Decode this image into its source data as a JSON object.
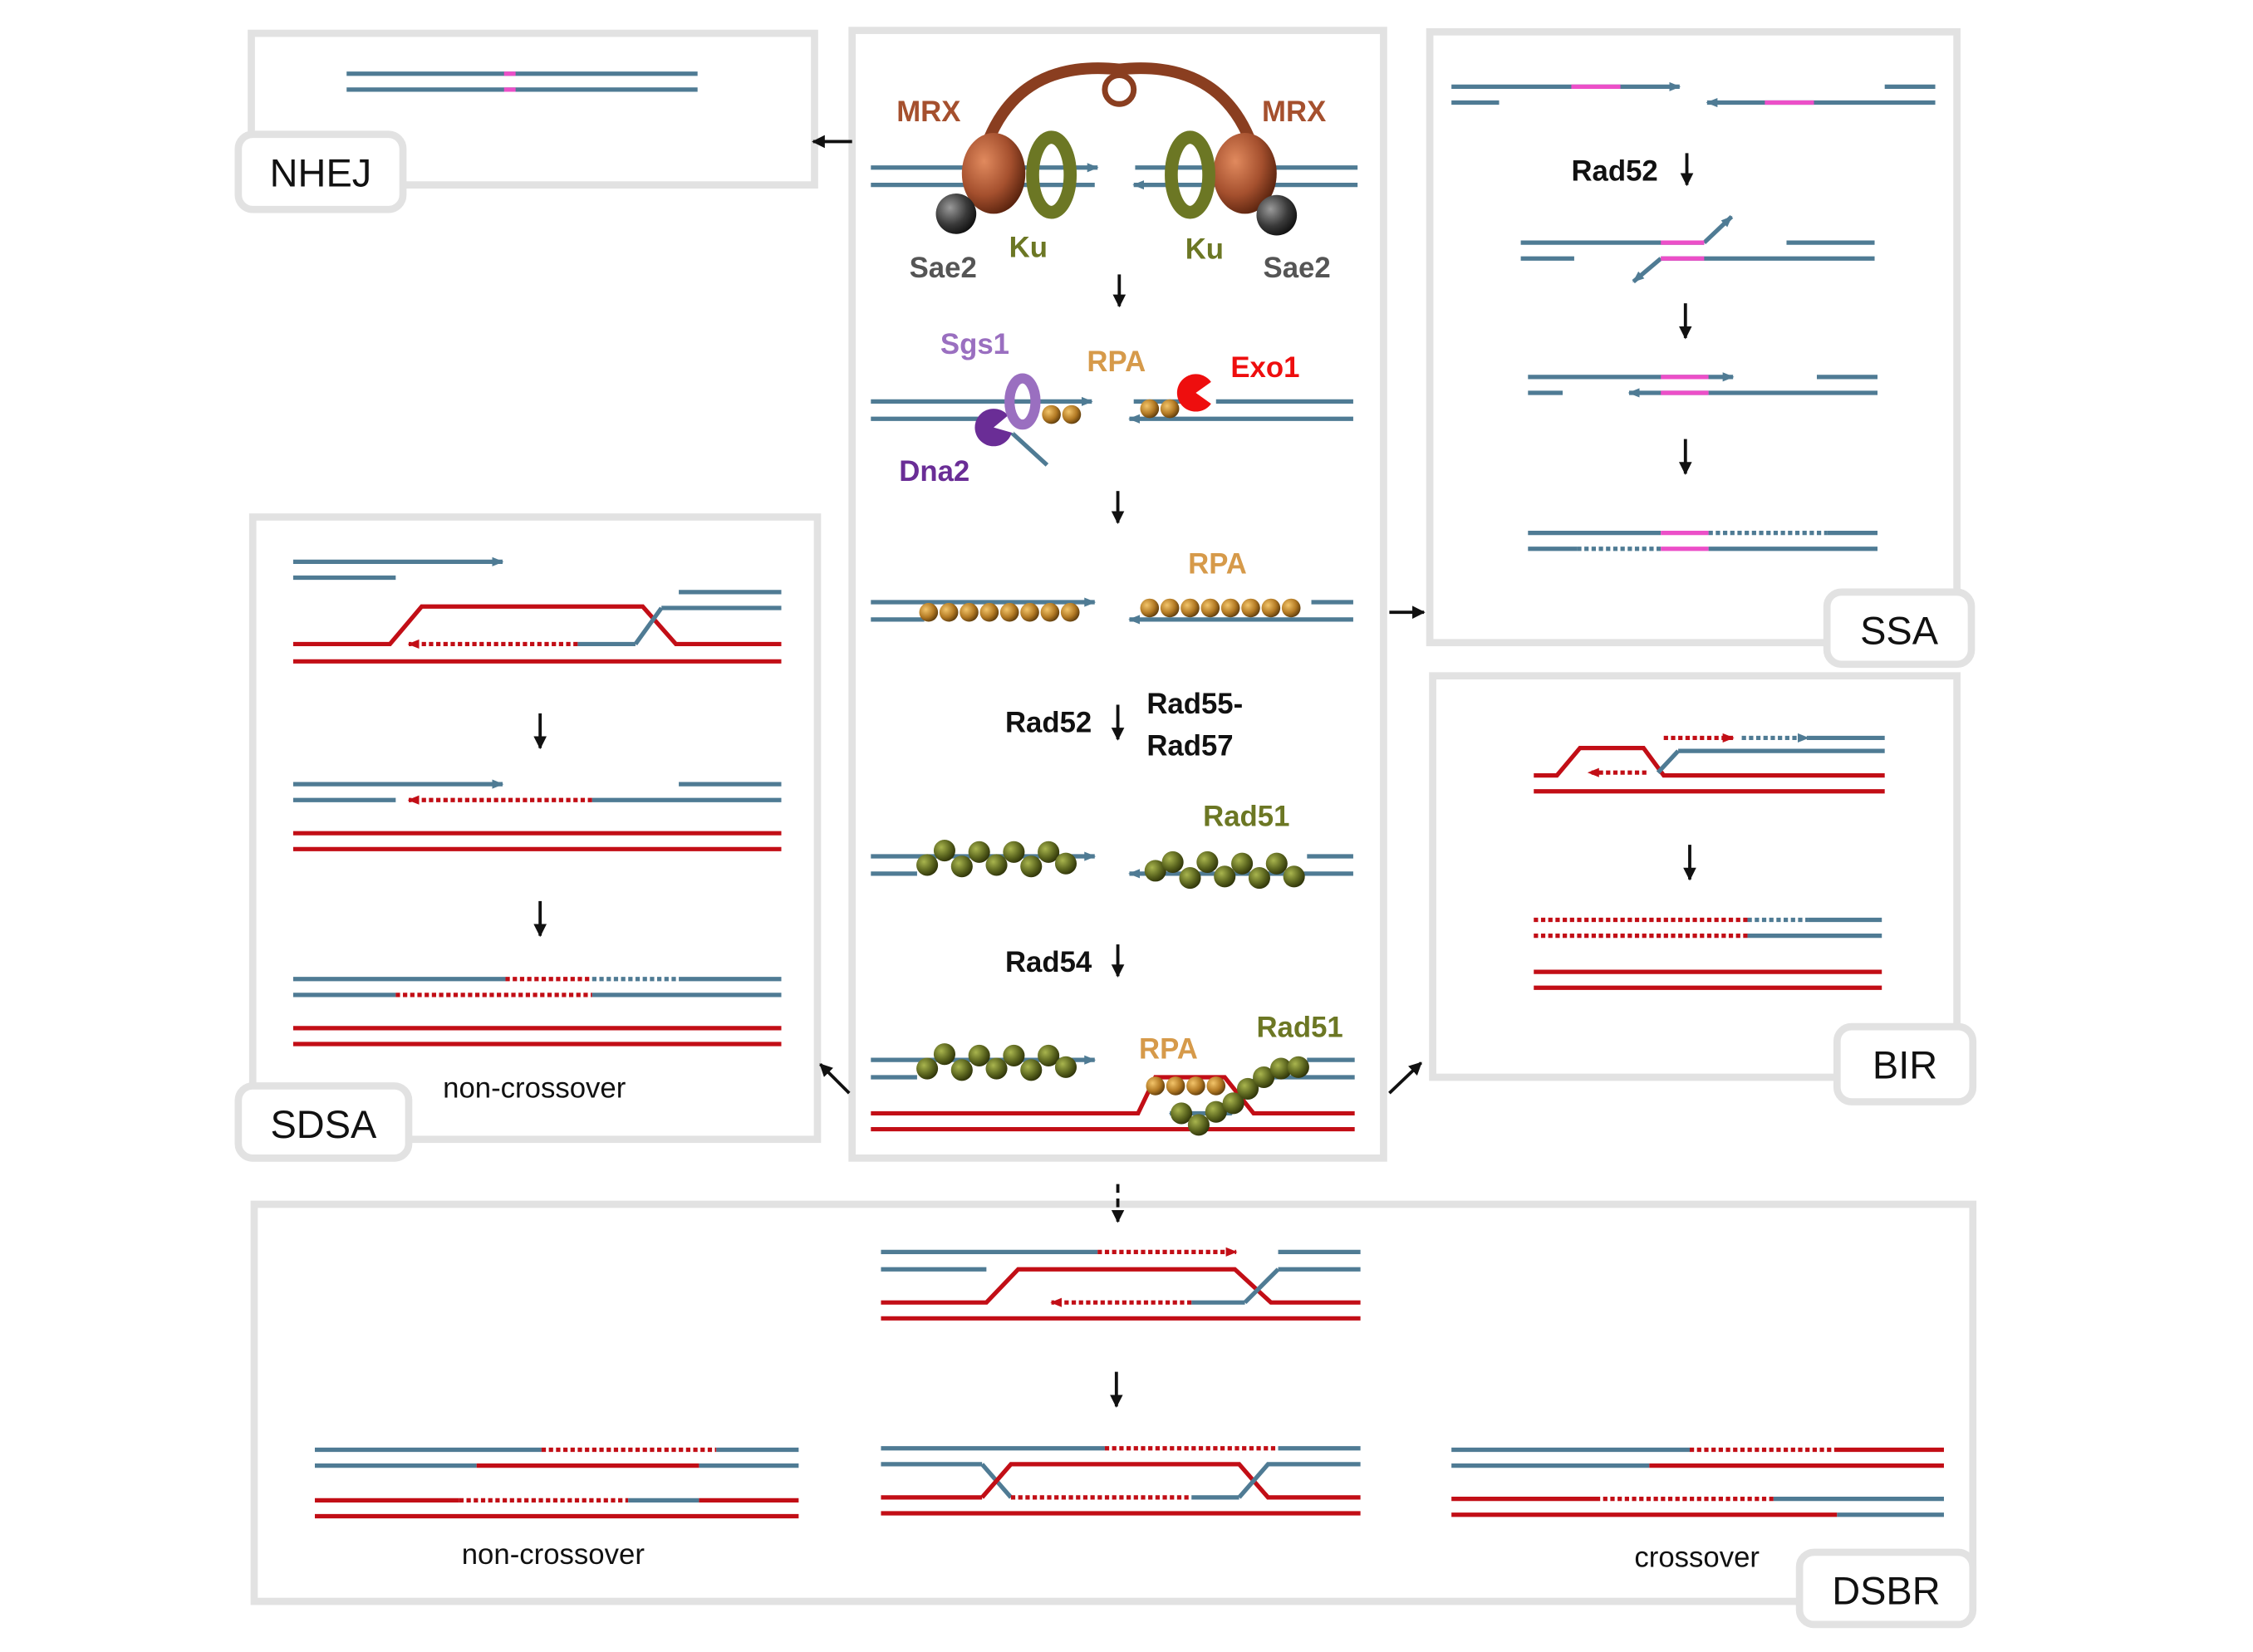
{
  "pathways": {
    "nhej": "NHEJ",
    "ssa": "SSA",
    "bir": "BIR",
    "sdsa": "SDSA",
    "dsbr": "DSBR"
  },
  "proteins": {
    "mrx_left": "MRX",
    "mrx_right": "MRX",
    "ku_left": "Ku",
    "ku_right": "Ku",
    "sae2_left": "Sae2",
    "sae2_right": "Sae2",
    "sgs1": "Sgs1",
    "rpa_resection": "RPA",
    "exo1": "Exo1",
    "dna2": "Dna2",
    "rpa_filament": "RPA",
    "rad52_main": "Rad52",
    "rad55_rad57_line1": "Rad55-",
    "rad55_rad57_line2": "Rad57",
    "rad51_filament": "Rad51",
    "rad54": "Rad54",
    "rpa_invasion": "RPA",
    "rad51_invasion": "Rad51",
    "rad52_ssa": "Rad52"
  },
  "outcomes": {
    "sdsa_result": "non-crossover",
    "dsbr_noncrossover": "non-crossover",
    "dsbr_crossover": "crossover"
  },
  "colors": {
    "dna_blue": "#4f7b94",
    "dna_red": "#c20e16",
    "microhomology": "#ec4fc8",
    "mrx": "#a5502e",
    "ku": "#6c7724",
    "sae2": "#3a3a3a",
    "sgs1": "#9a6fc0",
    "dna2": "#6a2d96",
    "exo1": "#ee0e0e",
    "rpa": "#b37a24",
    "rad51": "#56601c",
    "box_border": "#e2e2e2"
  }
}
